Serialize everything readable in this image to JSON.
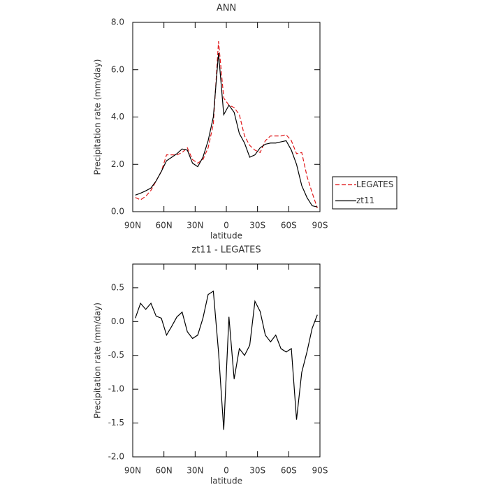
{
  "chart_data": [
    {
      "type": "line",
      "title": "ANN",
      "xlabel": "latitude",
      "ylabel": "Precipitation rate (mm/day)",
      "x": [
        87.5,
        82.5,
        77.5,
        72.5,
        67.5,
        62.5,
        57.5,
        52.5,
        47.5,
        42.5,
        37.5,
        32.5,
        27.5,
        22.5,
        17.5,
        12.5,
        7.5,
        2.5,
        -2.5,
        -7.5,
        -12.5,
        -17.5,
        -22.5,
        -27.5,
        -32.5,
        -37.5,
        -42.5,
        -47.5,
        -52.5,
        -57.5,
        -62.5,
        -67.5,
        -72.5,
        -77.5,
        -82.5,
        -87.5
      ],
      "series": [
        {
          "name": "LEGATES",
          "color": "#e0191b",
          "dash": "dashed",
          "values": [
            0.6,
            0.5,
            0.65,
            0.9,
            1.3,
            1.7,
            2.4,
            2.4,
            2.4,
            2.5,
            2.7,
            2.2,
            2.05,
            2.2,
            2.7,
            3.7,
            7.2,
            4.8,
            4.5,
            4.4,
            4.1,
            3.2,
            2.8,
            2.6,
            2.5,
            3.0,
            3.2,
            3.2,
            3.2,
            3.25,
            3.0,
            2.45,
            2.5,
            1.5,
            0.8,
            0.15
          ]
        },
        {
          "name": "zt11",
          "color": "#000000",
          "dash": "solid",
          "values": [
            0.7,
            0.78,
            0.88,
            1.0,
            1.3,
            1.7,
            2.15,
            2.3,
            2.45,
            2.65,
            2.6,
            2.05,
            1.9,
            2.3,
            3.0,
            4.0,
            6.7,
            4.1,
            4.5,
            4.2,
            3.3,
            2.9,
            2.3,
            2.4,
            2.7,
            2.85,
            2.9,
            2.9,
            2.95,
            3.0,
            2.6,
            2.0,
            1.1,
            0.6,
            0.25,
            0.2
          ]
        }
      ],
      "xlim": [
        90,
        -90
      ],
      "xticks": [
        {
          "value": 90,
          "label": "90N"
        },
        {
          "value": 60,
          "label": "60N"
        },
        {
          "value": 30,
          "label": "30N"
        },
        0,
        {
          "value": -30,
          "label": "30S"
        },
        {
          "value": -60,
          "label": "60S"
        },
        {
          "value": -90,
          "label": "90S"
        }
      ],
      "ylim": [
        0,
        8
      ],
      "yticks": [
        {
          "value": 0,
          "label": "0.0"
        },
        {
          "value": 2,
          "label": "2.0"
        },
        {
          "value": 4,
          "label": "4.0"
        },
        {
          "value": 6,
          "label": "6.0"
        },
        {
          "value": 8,
          "label": "8.0"
        }
      ],
      "legend": "outside-right"
    },
    {
      "type": "line",
      "title": "zt11 - LEGATES",
      "xlabel": "latitude",
      "ylabel": "Precipitation rate (mm/day)",
      "x": [
        87.5,
        82.5,
        77.5,
        72.5,
        67.5,
        62.5,
        57.5,
        52.5,
        47.5,
        42.5,
        37.5,
        32.5,
        27.5,
        22.5,
        17.5,
        12.5,
        7.5,
        2.5,
        -2.5,
        -7.5,
        -12.5,
        -17.5,
        -22.5,
        -27.5,
        -32.5,
        -37.5,
        -42.5,
        -47.5,
        -52.5,
        -57.5,
        -62.5,
        -67.5,
        -72.5,
        -77.5,
        -82.5,
        -87.5
      ],
      "series": [
        {
          "color": "#000000",
          "dash": "solid",
          "values": [
            0.05,
            0.27,
            0.18,
            0.27,
            0.08,
            0.05,
            -0.2,
            -0.07,
            0.07,
            0.14,
            -0.15,
            -0.25,
            -0.2,
            0.05,
            0.4,
            0.45,
            -0.45,
            -1.6,
            0.07,
            -0.85,
            -0.4,
            -0.5,
            -0.35,
            0.3,
            0.15,
            -0.2,
            -0.3,
            -0.2,
            -0.4,
            -0.45,
            -0.4,
            -1.45,
            -0.75,
            -0.45,
            -0.1,
            0.1
          ]
        }
      ],
      "xlim": [
        90,
        -90
      ],
      "xticks": [
        {
          "value": 90,
          "label": "90N"
        },
        {
          "value": 60,
          "label": "60N"
        },
        {
          "value": 30,
          "label": "30N"
        },
        0,
        {
          "value": -30,
          "label": "30S"
        },
        {
          "value": -60,
          "label": "60S"
        },
        {
          "value": -90,
          "label": "90S"
        }
      ],
      "ylim": [
        -2,
        0.85
      ],
      "yticks": [
        {
          "value": -2,
          "label": "-2.0"
        },
        {
          "value": -1.5,
          "label": "-1.5"
        },
        {
          "value": -1,
          "label": "-1.0"
        },
        {
          "value": -0.5,
          "label": "-0.5"
        },
        {
          "value": 0,
          "label": "0.0"
        },
        0.5
      ]
    }
  ]
}
